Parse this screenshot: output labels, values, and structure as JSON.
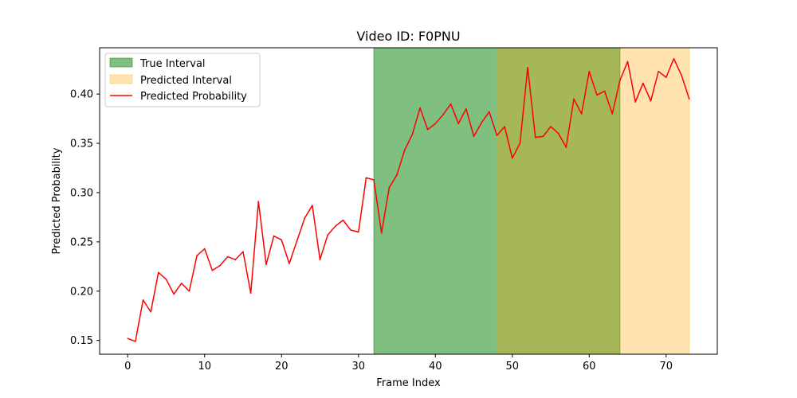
{
  "chart_data": {
    "type": "line",
    "title": "Video ID: F0PNU",
    "xlabel": "Frame Index",
    "ylabel": "Predicted Probability",
    "xlim": [
      -3.65,
      76.65
    ],
    "ylim": [
      0.136,
      0.447
    ],
    "xticks": [
      0,
      10,
      20,
      30,
      40,
      50,
      60,
      70
    ],
    "yticks": [
      0.15,
      0.2,
      0.25,
      0.3,
      0.35,
      0.4
    ],
    "ytick_labels": [
      "0.15",
      "0.20",
      "0.25",
      "0.30",
      "0.35",
      "0.40"
    ],
    "grid": false,
    "legend_position": "upper left",
    "intervals": [
      {
        "name": "True Interval",
        "start": 32,
        "end": 64,
        "color": "#008000",
        "alpha": 0.5
      },
      {
        "name": "Predicted Interval",
        "start": 48,
        "end": 73,
        "color": "#ffa500",
        "alpha": 0.3
      }
    ],
    "series": [
      {
        "name": "Predicted Probability",
        "color": "#ff0000",
        "x": [
          0,
          1,
          2,
          3,
          4,
          5,
          6,
          7,
          8,
          9,
          10,
          11,
          12,
          13,
          14,
          15,
          16,
          17,
          18,
          19,
          20,
          21,
          22,
          23,
          24,
          25,
          26,
          27,
          28,
          29,
          30,
          31,
          32,
          33,
          34,
          35,
          36,
          37,
          38,
          39,
          40,
          41,
          42,
          43,
          44,
          45,
          46,
          47,
          48,
          49,
          50,
          51,
          52,
          53,
          54,
          55,
          56,
          57,
          58,
          59,
          60,
          61,
          62,
          63,
          64,
          65,
          66,
          67,
          68,
          69,
          70,
          71,
          72,
          73
        ],
        "values": [
          0.152,
          0.149,
          0.191,
          0.179,
          0.219,
          0.212,
          0.197,
          0.208,
          0.2,
          0.236,
          0.243,
          0.221,
          0.226,
          0.235,
          0.232,
          0.24,
          0.198,
          0.291,
          0.227,
          0.256,
          0.252,
          0.228,
          0.251,
          0.274,
          0.287,
          0.232,
          0.257,
          0.266,
          0.272,
          0.262,
          0.26,
          0.315,
          0.313,
          0.259,
          0.305,
          0.318,
          0.343,
          0.359,
          0.386,
          0.364,
          0.37,
          0.379,
          0.39,
          0.37,
          0.385,
          0.357,
          0.371,
          0.382,
          0.358,
          0.367,
          0.335,
          0.35,
          0.427,
          0.356,
          0.357,
          0.367,
          0.36,
          0.346,
          0.395,
          0.38,
          0.423,
          0.399,
          0.403,
          0.38,
          0.414,
          0.433,
          0.392,
          0.411,
          0.393,
          0.423,
          0.417,
          0.436,
          0.419,
          0.395
        ]
      }
    ]
  }
}
